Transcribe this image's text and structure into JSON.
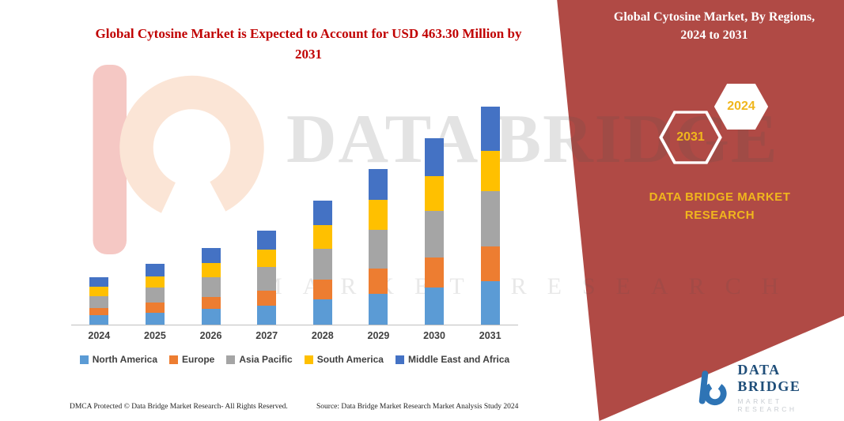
{
  "title": {
    "text": "Global Cytosine Market is Expected to Account for USD 463.30 Million by 2031",
    "color": "#C00000"
  },
  "banner": {
    "title": "Global Cytosine Market, By Regions, 2024 to 2031",
    "color": "#B04A45",
    "accent": "#F0B61D",
    "hexagons": [
      {
        "label": "2031",
        "style": "outline"
      },
      {
        "label": "2024",
        "style": "filled"
      }
    ],
    "brand": {
      "line1": "DATA BRIDGE MARKET",
      "line2": "RESEARCH"
    }
  },
  "watermark": {
    "line1": "DATA BRIDGE",
    "line2": "MARKET RESEARCH"
  },
  "chart_data": {
    "type": "bar",
    "stacked": true,
    "title": "Global Cytosine Market, By Regions, 2024 to 2031",
    "unit": "USD Million",
    "categories": [
      "2024",
      "2025",
      "2026",
      "2027",
      "2028",
      "2029",
      "2030",
      "2031"
    ],
    "series": [
      {
        "name": "North America",
        "color": "#5B9BD5",
        "values": [
          20,
          26,
          33,
          40,
          53,
          66,
          79,
          93
        ]
      },
      {
        "name": "Europe",
        "color": "#ED7D31",
        "values": [
          16,
          21,
          26,
          32,
          42,
          53,
          63,
          74
        ]
      },
      {
        "name": "Asia Pacific",
        "color": "#A5A5A5",
        "values": [
          25,
          32,
          41,
          50,
          66,
          83,
          99,
          116
        ]
      },
      {
        "name": "South America",
        "color": "#FFC000",
        "values": [
          19,
          24,
          31,
          38,
          50,
          63,
          75,
          87
        ]
      },
      {
        "name": "Middle East and Africa",
        "color": "#4472C4",
        "values": [
          21,
          26,
          32,
          40,
          53,
          66,
          80,
          93.3
        ]
      }
    ],
    "totals": [
      101,
      129,
      163,
      200,
      264,
      331,
      396,
      463.3
    ],
    "ylim": [
      0,
      480
    ],
    "grid": false,
    "legend_position": "bottom",
    "annotation": "2031 total = USD 463.30 Million"
  },
  "footer": {
    "left": "DMCA Protected © Data Bridge Market Research-  All Rights Reserved.",
    "source": "Source: Data Bridge Market Research  Market Analysis Study 2024"
  },
  "logo": {
    "name": "DATA BRIDGE",
    "sub": "MARKET RESEARCH"
  }
}
